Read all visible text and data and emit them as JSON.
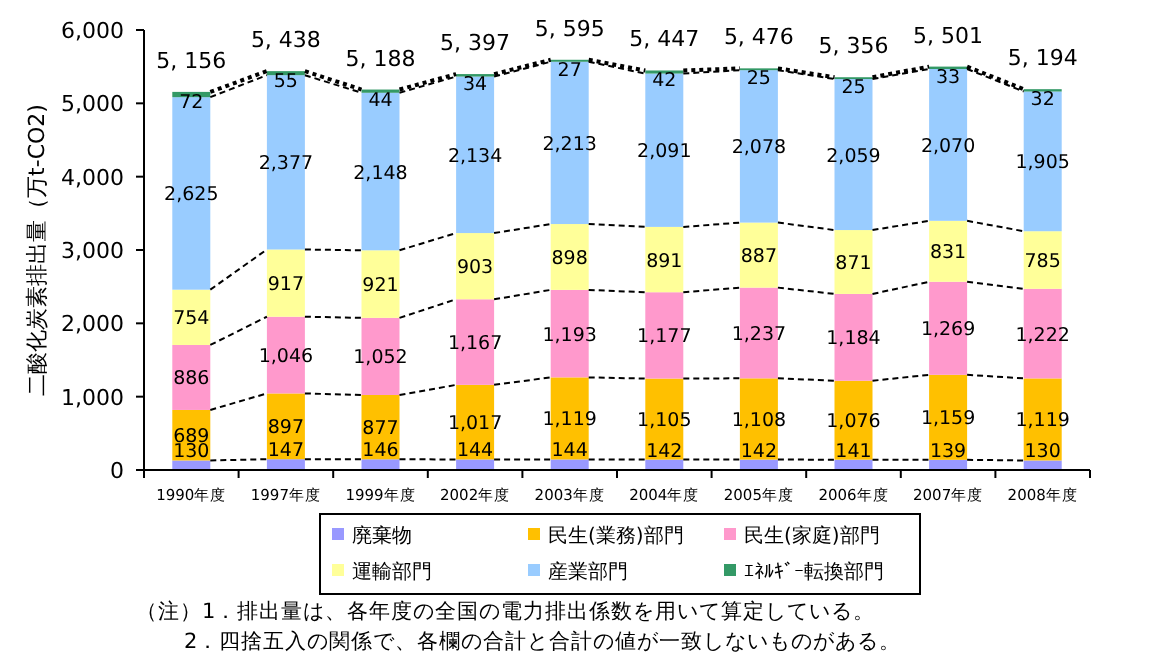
{
  "chart_data": {
    "type": "bar",
    "stacked": true,
    "ylabel": "二酸化炭素排出量（万t-CO2)",
    "categories": [
      "1990年度",
      "1997年度",
      "1999年度",
      "2002年度",
      "2003年度",
      "2004年度",
      "2005年度",
      "2006年度",
      "2007年度",
      "2008年度"
    ],
    "series": [
      {
        "name": "廃棄物",
        "color": "#9999ff",
        "values": [
          130,
          147,
          146,
          144,
          144,
          142,
          142,
          141,
          139,
          130
        ],
        "value_labels": [
          "130",
          "147",
          "146",
          "144",
          "144",
          "142",
          "142",
          "141",
          "139",
          "130"
        ]
      },
      {
        "name": "民生(業務)部門",
        "color": "#ffc000",
        "values": [
          689,
          897,
          877,
          1017,
          1119,
          1105,
          1108,
          1076,
          1159,
          1119
        ],
        "value_labels": [
          "689",
          "897",
          "877",
          "1,017",
          "1,119",
          "1,105",
          "1,108",
          "1,076",
          "1,159",
          "1,119"
        ]
      },
      {
        "name": "民生(家庭)部門",
        "color": "#ff99cc",
        "values": [
          886,
          1046,
          1052,
          1167,
          1193,
          1177,
          1237,
          1184,
          1269,
          1222
        ],
        "value_labels": [
          "886",
          "1,046",
          "1,052",
          "1,167",
          "1,193",
          "1,177",
          "1,237",
          "1,184",
          "1,269",
          "1,222"
        ]
      },
      {
        "name": "運輸部門",
        "color": "#ffff99",
        "values": [
          754,
          917,
          921,
          903,
          898,
          891,
          887,
          871,
          831,
          785
        ],
        "value_labels": [
          "754",
          "917",
          "921",
          "903",
          "898",
          "891",
          "887",
          "871",
          "831",
          "785"
        ]
      },
      {
        "name": "産業部門",
        "color": "#99ccff",
        "values": [
          2625,
          2377,
          2148,
          2134,
          2213,
          2091,
          2078,
          2059,
          2070,
          1905
        ],
        "value_labels": [
          "2,625",
          "2,377",
          "2,148",
          "2,134",
          "2,213",
          "2,091",
          "2,078",
          "2,059",
          "2,070",
          "1,905"
        ]
      },
      {
        "name": "ｴﾈﾙｷﾞｰ転換部門",
        "color": "#339966",
        "values": [
          72,
          55,
          44,
          34,
          27,
          42,
          25,
          25,
          33,
          32
        ],
        "value_labels": [
          "72",
          "55",
          "44",
          "34",
          "27",
          "42",
          "25",
          "25",
          "33",
          "32"
        ]
      }
    ],
    "totals": [
      "5, 156",
      "5, 438",
      "5, 188",
      "5, 397",
      "5, 595",
      "5, 447",
      "5, 476",
      "5, 356",
      "5, 501",
      "5, 194"
    ],
    "ylim": [
      0,
      6000
    ],
    "yticks": [
      0,
      {
        "value": 1000,
        "label": "1,000"
      },
      {
        "value": 2000,
        "label": "2,000"
      },
      {
        "value": 3000,
        "label": "3,000"
      },
      {
        "value": 4000,
        "label": "4,000"
      },
      {
        "value": 5000,
        "label": "5,000"
      },
      {
        "value": 6000,
        "label": "6,000"
      }
    ],
    "grid": false,
    "legend": "bottom",
    "annotations": [
      "（注）1．排出量は、各年度の全国の電力排出係数を用いて算定している。",
      "2．四捨五入の関係で、各欄の合計と合計の値が一致しないものがある。"
    ]
  }
}
